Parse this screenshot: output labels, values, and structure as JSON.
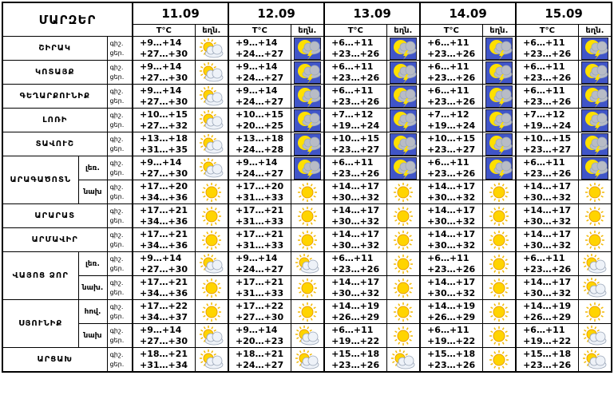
{
  "header": {
    "title": "ՄԱՐԶԵՐ",
    "dates": [
      "11.09",
      "12.09",
      "13.09",
      "14.09",
      "15.09"
    ],
    "temp_label": "T°C",
    "weather_label": "եղն.",
    "night": "գիշ.",
    "day": "ցեր."
  },
  "regions": [
    {
      "name": "ՇԻՐԱԿ",
      "rows": [
        {
          "temps": [
            [
              "+9…+14",
              "+27…+30"
            ],
            [
              "+9…+14",
              "+24…+27"
            ],
            [
              "+6…+11",
              "+23…+26"
            ],
            [
              "+6…+11",
              "+23…+26"
            ],
            [
              "+6…+11",
              "+23…+26"
            ]
          ]
        }
      ]
    },
    {
      "name": "ԿՈՏԱՅՔ",
      "rows": [
        {
          "temps": [
            [
              "+9…+14",
              "+27…+30"
            ],
            [
              "+9…+14",
              "+24…+27"
            ],
            [
              "+6…+11",
              "+23…+26"
            ],
            [
              "+6…+11",
              "+23…+26"
            ],
            [
              "+6…+11",
              "+23…+26"
            ]
          ]
        }
      ]
    },
    {
      "name": "ԳԵՂԱՐՔՈՒՆԻՔ",
      "rows": [
        {
          "temps": [
            [
              "+9…+14",
              "+27…+30"
            ],
            [
              "+9…+14",
              "+24…+27"
            ],
            [
              "+6…+11",
              "+23…+26"
            ],
            [
              "+6…+11",
              "+23…+26"
            ],
            [
              "+6…+11",
              "+23…+26"
            ]
          ]
        }
      ]
    },
    {
      "name": "ԼՈՌԻ",
      "rows": [
        {
          "temps": [
            [
              "+10…+15",
              "+27…+32"
            ],
            [
              "+10…+15",
              "+20…+25"
            ],
            [
              "+7…+12",
              "+19…+24"
            ],
            [
              "+7…+12",
              "+19…+24"
            ],
            [
              "+7…+12",
              "+19…+24"
            ]
          ]
        }
      ]
    },
    {
      "name": "ՏԱՎՈՒՇ",
      "rows": [
        {
          "temps": [
            [
              "+13…+18",
              "+31…+35"
            ],
            [
              "+13…+18",
              "+24…+28"
            ],
            [
              "+10…+15",
              "+23…+27"
            ],
            [
              "+10…+15",
              "+23…+27"
            ],
            [
              "+10…+15",
              "+23…+27"
            ]
          ]
        }
      ]
    },
    {
      "name": "ԱՐԱԳԱԾՈՏՆ",
      "rows": [
        {
          "zone": "լեռ.",
          "temps": [
            [
              "+9…+14",
              "+27…+30"
            ],
            [
              "+9…+14",
              "+24…+27"
            ],
            [
              "+6…+11",
              "+23…+26"
            ],
            [
              "+6…+11",
              "+23…+26"
            ],
            [
              "+6…+11",
              "+23…+26"
            ]
          ]
        },
        {
          "zone": "նախ",
          "temps": [
            [
              "+17…+20",
              "+34…+36"
            ],
            [
              "+17…+20",
              "+31…+33"
            ],
            [
              "+14…+17",
              "+30…+32"
            ],
            [
              "+14…+17",
              "+30…+32"
            ],
            [
              "+14…+17",
              "+30…+32"
            ]
          ]
        }
      ]
    },
    {
      "name": "ԱՐԱՐԱՏ",
      "rows": [
        {
          "temps": [
            [
              "+17…+21",
              "+34…+36"
            ],
            [
              "+17…+21",
              "+31…+33"
            ],
            [
              "+14…+17",
              "+30…+32"
            ],
            [
              "+14…+17",
              "+30…+32"
            ],
            [
              "+14…+17",
              "+30…+32"
            ]
          ]
        }
      ]
    },
    {
      "name": "ԱՐՄԱՎԻՐ",
      "rows": [
        {
          "temps": [
            [
              "+17…+21",
              "+34…+36"
            ],
            [
              "+17…+21",
              "+31…+33"
            ],
            [
              "+14…+17",
              "+30…+32"
            ],
            [
              "+14…+17",
              "+30…+32"
            ],
            [
              "+14…+17",
              "+30…+32"
            ]
          ]
        }
      ]
    },
    {
      "name": "ՎԱՅՈՑ ՁՈՐ",
      "rows": [
        {
          "zone": "լեռ.",
          "temps": [
            [
              "+9…+14",
              "+27…+30"
            ],
            [
              "+9…+14",
              "+24…+27"
            ],
            [
              "+6…+11",
              "+23…+26"
            ],
            [
              "+6…+11",
              "+23…+26"
            ],
            [
              "+6…+11",
              "+23…+26"
            ]
          ]
        },
        {
          "zone": "նախ.",
          "temps": [
            [
              "+17…+21",
              "+34…+36"
            ],
            [
              "+17…+21",
              "+31…+33"
            ],
            [
              "+14…+17",
              "+30…+32"
            ],
            [
              "+14…+17",
              "+30…+32"
            ],
            [
              "+14…+17",
              "+30…+32"
            ]
          ]
        }
      ]
    },
    {
      "name": "ՍՅՈՒՆԻՔ",
      "rows": [
        {
          "zone": "հով.",
          "temps": [
            [
              "+17…+22",
              "+34…+37"
            ],
            [
              "+17…+22",
              "+27…+30"
            ],
            [
              "+14…+19",
              "+26…+29"
            ],
            [
              "+14…+19",
              "+26…+29"
            ],
            [
              "+14…+19",
              "+26…+29"
            ]
          ]
        },
        {
          "zone": "նախ",
          "temps": [
            [
              "+9…+14",
              "+27…+30"
            ],
            [
              "+9…+14",
              "+20…+23"
            ],
            [
              "+6…+11",
              "+19…+22"
            ],
            [
              "+6…+11",
              "+19…+22"
            ],
            [
              "+6…+11",
              "+19…+22"
            ]
          ]
        }
      ]
    },
    {
      "name": "ԱՐՑԱԽ",
      "rows": [
        {
          "temps": [
            [
              "+18…+21",
              "+31…+34"
            ],
            [
              "+18…+21",
              "+24…+27"
            ],
            [
              "+15…+18",
              "+23…+26"
            ],
            [
              "+15…+18",
              "+23…+26"
            ],
            [
              "+15…+18",
              "+23…+26"
            ]
          ]
        }
      ]
    }
  ]
}
